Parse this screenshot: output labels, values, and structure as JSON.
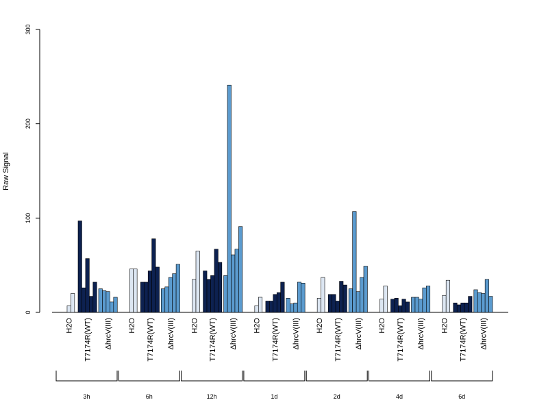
{
  "chart_data": {
    "type": "bar",
    "ylabel": "Raw Signal",
    "ylim": [
      0,
      300
    ],
    "yticks": [
      0,
      100,
      200,
      300
    ],
    "group_categories": [
      "H2O",
      "T7174R(WT)",
      "ΔhrcV(III)"
    ],
    "colors": {
      "H2O": "#dce6f2",
      "T7174R(WT)": "#0d2150",
      "ΔhrcV(III)": "#5b9bcf"
    },
    "timepoints": [
      {
        "label": "3h",
        "values": {
          "H2O": [
            0,
            7,
            20
          ],
          "T7174R(WT)": [
            97,
            26,
            57,
            17,
            32
          ],
          "ΔhrcV(III)": [
            25,
            23,
            22,
            11,
            16
          ]
        }
      },
      {
        "label": "6h",
        "values": {
          "H2O": [
            0,
            46,
            46
          ],
          "T7174R(WT)": [
            32,
            32,
            44,
            78,
            48
          ],
          "ΔhrcV(III)": [
            25,
            27,
            37,
            41,
            51
          ]
        }
      },
      {
        "label": "12h",
        "values": {
          "H2O": [
            0,
            35,
            65
          ],
          "T7174R(WT)": [
            44,
            35,
            39,
            67,
            53
          ],
          "ΔhrcV(III)": [
            39,
            241,
            61,
            67,
            91
          ]
        }
      },
      {
        "label": "1d",
        "values": {
          "H2O": [
            0,
            7,
            16
          ],
          "T7174R(WT)": [
            12,
            12,
            19,
            21,
            32
          ],
          "ΔhrcV(III)": [
            15,
            9,
            10,
            32,
            31
          ]
        }
      },
      {
        "label": "2d",
        "values": {
          "H2O": [
            0,
            15,
            37
          ],
          "T7174R(WT)": [
            19,
            19,
            12,
            33,
            29
          ],
          "ΔhrcV(III)": [
            25,
            107,
            22,
            37,
            49
          ]
        }
      },
      {
        "label": "4d",
        "values": {
          "H2O": [
            0,
            14,
            28
          ],
          "T7174R(WT)": [
            14,
            15,
            7,
            14,
            11
          ],
          "ΔhrcV(III)": [
            16,
            16,
            14,
            26,
            28
          ]
        }
      },
      {
        "label": "6d",
        "values": {
          "H2O": [
            0,
            18,
            34
          ],
          "T7174R(WT)": [
            10,
            8,
            10,
            10,
            17
          ],
          "ΔhrcV(III)": [
            24,
            21,
            20,
            35,
            17
          ]
        }
      }
    ]
  }
}
